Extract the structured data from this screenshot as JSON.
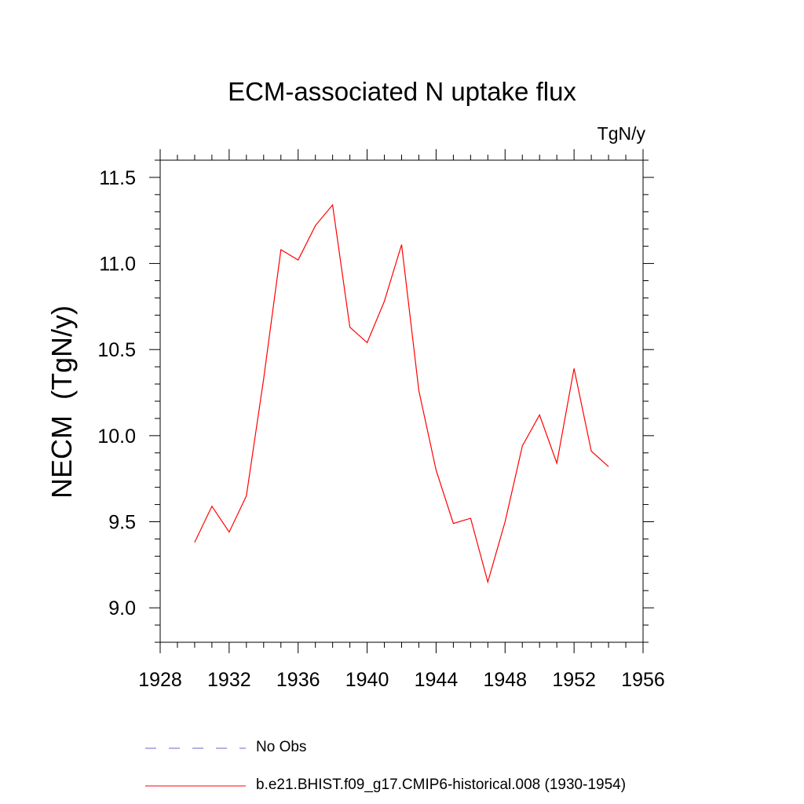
{
  "chart_data": {
    "type": "line",
    "title": "ECM-associated N uptake flux",
    "units": "TgN/y",
    "ylabel": "NECM  (TgN/y)",
    "xlabel": "",
    "xlim": [
      1928,
      1956
    ],
    "ylim": [
      8.8,
      11.6
    ],
    "x_ticks": [
      "1928",
      "1932",
      "1936",
      "1940",
      "1944",
      "1948",
      "1952",
      "1956"
    ],
    "y_ticks": [
      "9.0",
      "9.5",
      "10.0",
      "10.5",
      "11.0",
      "11.5"
    ],
    "series": [
      {
        "name": "b.e21.BHIST.f09_g17.CMIP6-historical.008 (1930-1954)",
        "color": "#ff0000",
        "style": "solid",
        "x": [
          1930,
          1931,
          1932,
          1933,
          1934,
          1935,
          1936,
          1937,
          1938,
          1939,
          1940,
          1941,
          1942,
          1943,
          1944,
          1945,
          1946,
          1947,
          1948,
          1949,
          1950,
          1951,
          1952,
          1953,
          1954
        ],
        "values": [
          9.38,
          9.59,
          9.44,
          9.65,
          10.33,
          11.08,
          11.02,
          11.22,
          11.34,
          10.63,
          10.54,
          10.78,
          11.11,
          10.26,
          9.8,
          9.49,
          9.52,
          9.15,
          9.5,
          9.94,
          10.12,
          9.84,
          10.39,
          9.91,
          9.82
        ]
      }
    ],
    "legend": [
      {
        "label": "No Obs",
        "color": "#6666cc",
        "style": "dashed"
      },
      {
        "label": "b.e21.BHIST.f09_g17.CMIP6-historical.008 (1930-1954)",
        "color": "#ff0000",
        "style": "solid"
      }
    ]
  }
}
